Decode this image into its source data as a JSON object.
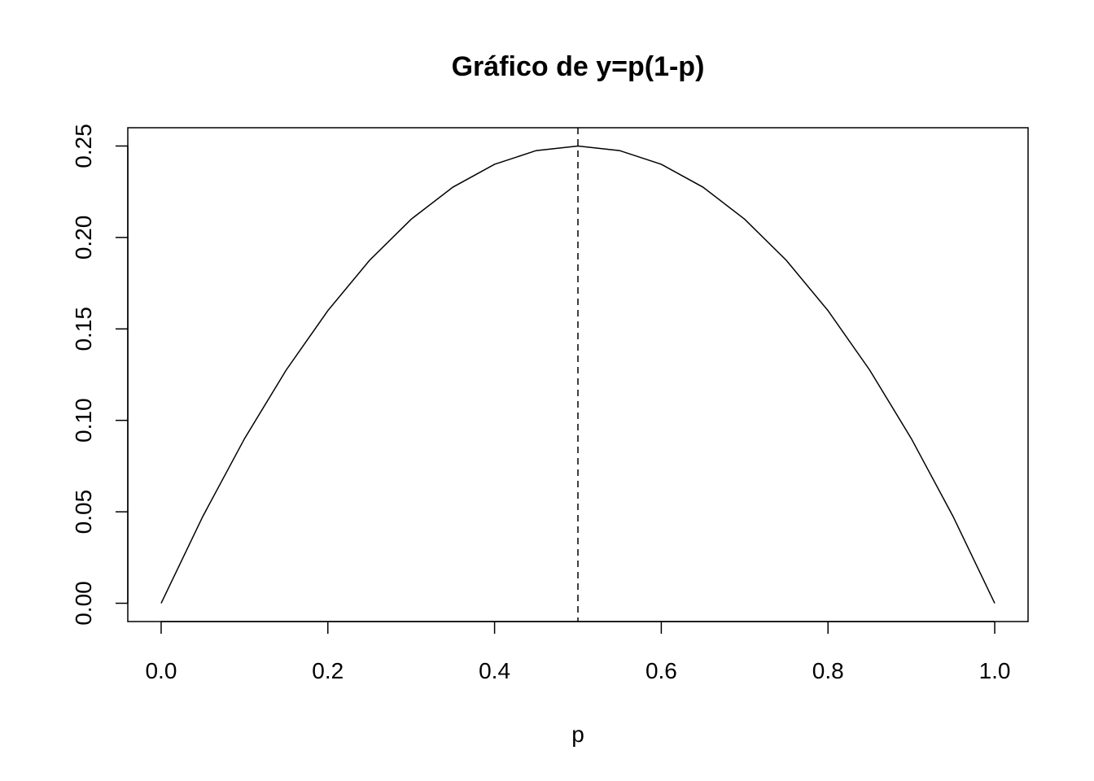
{
  "chart_data": {
    "type": "line",
    "title": "Gráfico de y=p(1-p)",
    "xlabel": "p",
    "ylabel": "",
    "xlim": [
      -0.04,
      1.04
    ],
    "ylim": [
      -0.01,
      0.26
    ],
    "x_ticks": [
      0.0,
      0.2,
      0.4,
      0.6,
      0.8,
      1.0
    ],
    "x_tick_labels": [
      "0.0",
      "0.2",
      "0.4",
      "0.6",
      "0.8",
      "1.0"
    ],
    "y_ticks": [
      0.0,
      0.05,
      0.1,
      0.15,
      0.2,
      0.25
    ],
    "y_tick_labels": [
      "0.00",
      "0.05",
      "0.10",
      "0.15",
      "0.20",
      "0.25"
    ],
    "grid": false,
    "series": [
      {
        "x": [
          0.0,
          0.05,
          0.1,
          0.15,
          0.2,
          0.25,
          0.3,
          0.35,
          0.4,
          0.45,
          0.5,
          0.55,
          0.6,
          0.65,
          0.7,
          0.75,
          0.8,
          0.85,
          0.9,
          0.95,
          1.0
        ],
        "values": [
          0.0,
          0.0475,
          0.09,
          0.1275,
          0.16,
          0.1875,
          0.21,
          0.2275,
          0.24,
          0.2475,
          0.25,
          0.2475,
          0.24,
          0.2275,
          0.21,
          0.1875,
          0.16,
          0.1275,
          0.09,
          0.0475,
          0.0
        ],
        "color": "#000000",
        "line_style": "solid"
      }
    ],
    "vline": {
      "x": 0.5,
      "color": "#000000",
      "line_style": "dashed"
    }
  }
}
